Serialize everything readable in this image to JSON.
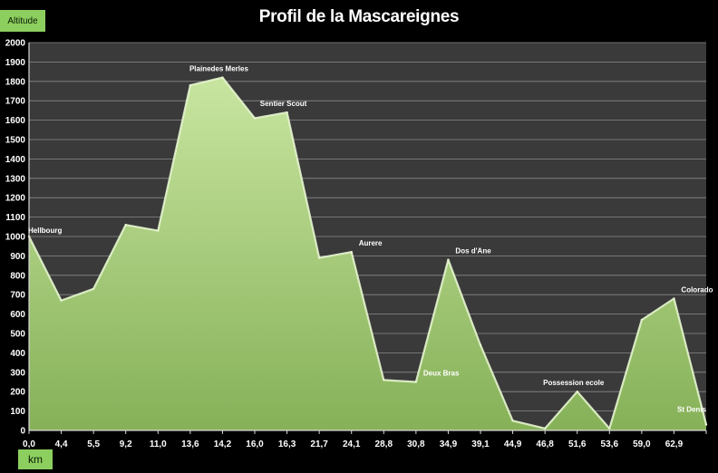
{
  "chart_data": {
    "type": "area",
    "title": "Profil de la Mascareignes",
    "ylabel": "Altitude",
    "xlabel": "km",
    "ylim": [
      0,
      2000
    ],
    "yticks": [
      0,
      100,
      200,
      300,
      400,
      500,
      600,
      700,
      800,
      900,
      1000,
      1100,
      1200,
      1300,
      1400,
      1500,
      1600,
      1700,
      1800,
      1900,
      2000
    ],
    "grid": true,
    "legend": "none",
    "colors": {
      "background": "#000000",
      "plot_area": "#3a3a3a",
      "gridline": "#8a8a8a",
      "fill_top": "#c8e5a0",
      "fill_bottom": "#86b158",
      "tab": "#8ccf5f",
      "text": "#ffffff"
    },
    "categories": [
      "0,0",
      "4,4",
      "5,5",
      "9,2",
      "11,0",
      "13,6",
      "14,2",
      "16,0",
      "16,3",
      "21,7",
      "24,1",
      "28,8",
      "30,8",
      "34,9",
      "39,1",
      "44,9",
      "46,8",
      "51,6",
      "53,6",
      "59,0",
      "62,9",
      ""
    ],
    "values": [
      1000,
      670,
      730,
      1060,
      1030,
      1780,
      1820,
      1610,
      1640,
      890,
      920,
      260,
      250,
      880,
      440,
      50,
      10,
      200,
      10,
      570,
      680,
      30
    ],
    "annotations": [
      {
        "index": 0,
        "text": "Hellbourg"
      },
      {
        "index": 6,
        "text": "Plainedes Merles"
      },
      {
        "index": 8,
        "text": "Sentier Scout"
      },
      {
        "index": 10,
        "text": "Aurere"
      },
      {
        "index": 12,
        "text": "Deux Bras"
      },
      {
        "index": 13,
        "text": "Dos d'Ane"
      },
      {
        "index": 17,
        "text": "Possession ecole"
      },
      {
        "index": 20,
        "text": "Colorado"
      },
      {
        "index": 21,
        "text": "St Denis"
      }
    ]
  }
}
